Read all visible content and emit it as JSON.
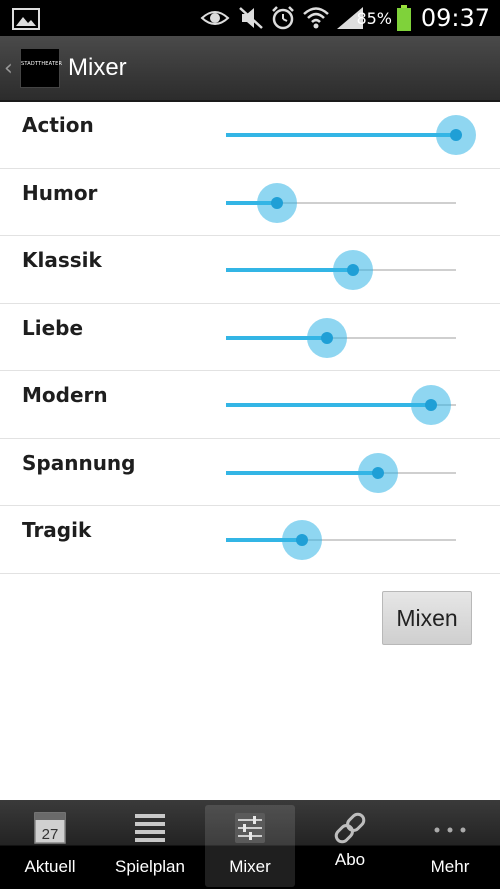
{
  "status_bar": {
    "battery_percent": "85%",
    "time": "09:37",
    "icons": [
      "image-icon",
      "eye-icon",
      "mute-icon",
      "alarm-icon",
      "wifi-icon",
      "signal-icon",
      "battery-icon"
    ]
  },
  "action_bar": {
    "back_glyph": "‹",
    "logo_text": "STADTTHEATER",
    "title": "Mixer"
  },
  "mixer": {
    "sliders": [
      {
        "label": "Action",
        "value": 1.0
      },
      {
        "label": "Humor",
        "value": 0.22
      },
      {
        "label": "Klassik",
        "value": 0.55
      },
      {
        "label": "Liebe",
        "value": 0.44
      },
      {
        "label": "Modern",
        "value": 0.89
      },
      {
        "label": "Spannung",
        "value": 0.66
      },
      {
        "label": "Tragik",
        "value": 0.33
      }
    ],
    "accent_color": "#33b5e5"
  },
  "mixen_button": {
    "label": "Mixen"
  },
  "tab_bar": {
    "tabs": [
      {
        "label": "Aktuell",
        "icon": "calendar-icon",
        "calendar_day": "27",
        "active": false
      },
      {
        "label": "Spielplan",
        "icon": "list-icon",
        "active": false
      },
      {
        "label": "Mixer",
        "icon": "sliders-icon",
        "active": true
      },
      {
        "label": "Abo",
        "icon": "link-icon",
        "active": false
      },
      {
        "label": "Mehr",
        "icon": "more-icon",
        "active": false
      }
    ]
  }
}
